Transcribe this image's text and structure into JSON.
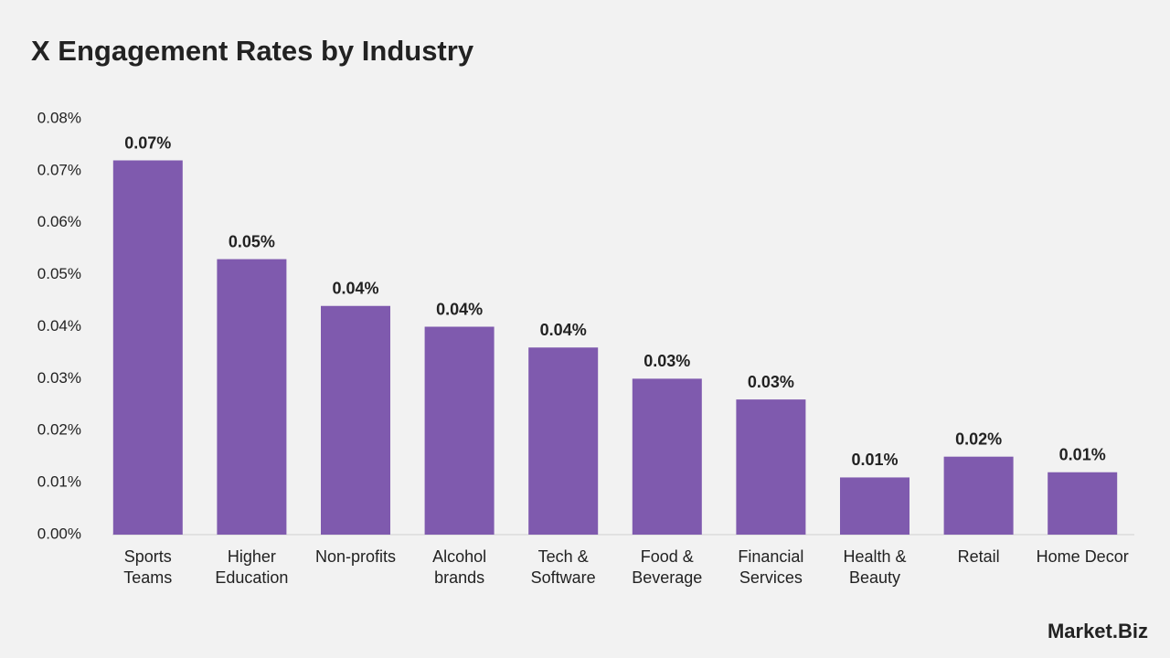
{
  "chart_data": {
    "type": "bar",
    "title": "X Engagement Rates by Industry",
    "categories": [
      "Sports Teams",
      "Higher Education",
      "Non-profits",
      "Alcohol brands",
      "Tech & Software",
      "Food & Beverage",
      "Financial Services",
      "Health & Beauty",
      "Retail",
      "Home Decor"
    ],
    "values": [
      0.072,
      0.053,
      0.044,
      0.04,
      0.036,
      0.03,
      0.026,
      0.011,
      0.015,
      0.012
    ],
    "value_labels": [
      "0.07%",
      "0.05%",
      "0.04%",
      "0.04%",
      "0.04%",
      "0.03%",
      "0.03%",
      "0.01%",
      "0.02%",
      "0.01%"
    ],
    "color": "#7f5aae",
    "ylim": [
      0,
      0.08
    ],
    "yticks": [
      {
        "value": 0,
        "label": "0.00%"
      },
      {
        "value": 0.01,
        "label": "0.01%"
      },
      {
        "value": 0.02,
        "label": "0.02%"
      },
      {
        "value": 0.03,
        "label": "0.03%"
      },
      {
        "value": 0.04,
        "label": "0.04%"
      },
      {
        "value": 0.05,
        "label": "0.05%"
      },
      {
        "value": 0.06,
        "label": "0.06%"
      },
      {
        "value": 0.07,
        "label": "0.07%"
      },
      {
        "value": 0.08,
        "label": "0.08%"
      }
    ],
    "grid": false,
    "logo": "Market.Biz"
  }
}
